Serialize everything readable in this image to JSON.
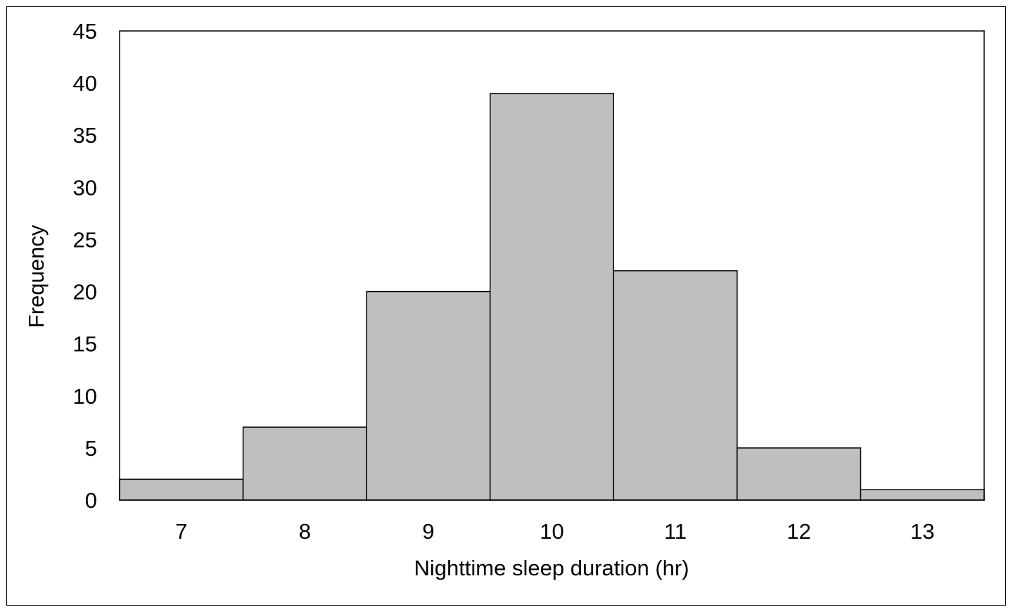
{
  "chart_data": {
    "type": "bar",
    "title": "",
    "xlabel": "Nighttime sleep duration (hr)",
    "ylabel": "Frequency",
    "categories": [
      "7",
      "8",
      "9",
      "10",
      "11",
      "12",
      "13"
    ],
    "values": [
      2,
      7,
      20,
      39,
      22,
      5,
      1
    ],
    "ylim": [
      0,
      45
    ],
    "yticks": [
      0,
      5,
      10,
      15,
      20,
      25,
      30,
      35,
      40,
      45
    ],
    "grid": false,
    "legend": "none",
    "bar_fill": "#bfbfbf",
    "bar_stroke": "#000000"
  }
}
